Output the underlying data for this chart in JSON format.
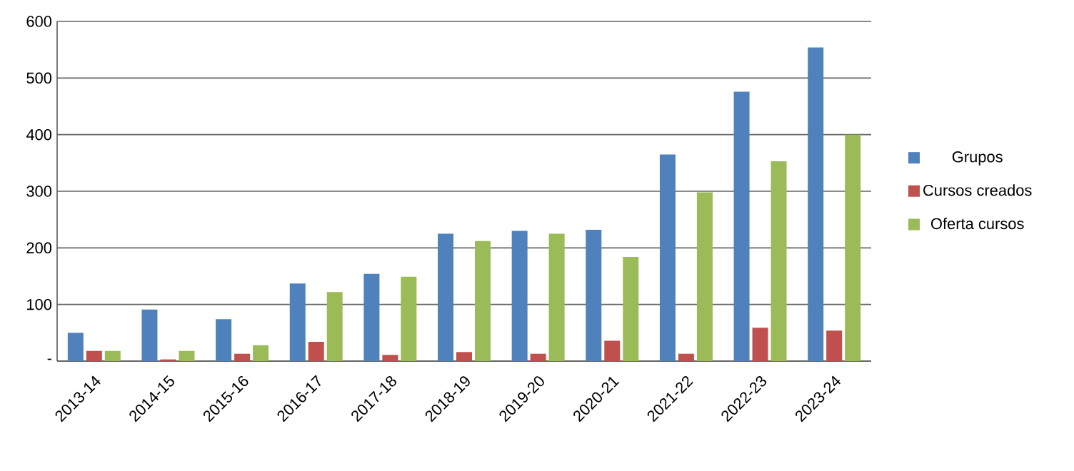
{
  "chart_data": {
    "type": "bar",
    "categories": [
      "2013-14",
      "2014-15",
      "2015-16",
      "2016-17",
      "2017-18",
      "2018-19",
      "2019-20",
      "2020-21",
      "2021-22",
      "2022-23",
      "2023-24"
    ],
    "series": [
      {
        "name": "Grupos",
        "color": "#4f81bd",
        "values": [
          50,
          91,
          74,
          137,
          154,
          225,
          230,
          232,
          365,
          476,
          554
        ]
      },
      {
        "name": "Cursos creados",
        "color": "#c0504d",
        "values": [
          18,
          3,
          13,
          34,
          11,
          16,
          13,
          36,
          13,
          59,
          54
        ]
      },
      {
        "name": "Oferta cursos",
        "color": "#9bbb59",
        "values": [
          18,
          18,
          28,
          122,
          149,
          212,
          225,
          184,
          298,
          353,
          400
        ]
      }
    ],
    "ylim": [
      0,
      600
    ],
    "yticks": [
      {
        "value": 0,
        "label": "-"
      },
      100,
      200,
      300,
      400,
      500,
      600
    ],
    "grid": "y",
    "legend": "right"
  }
}
